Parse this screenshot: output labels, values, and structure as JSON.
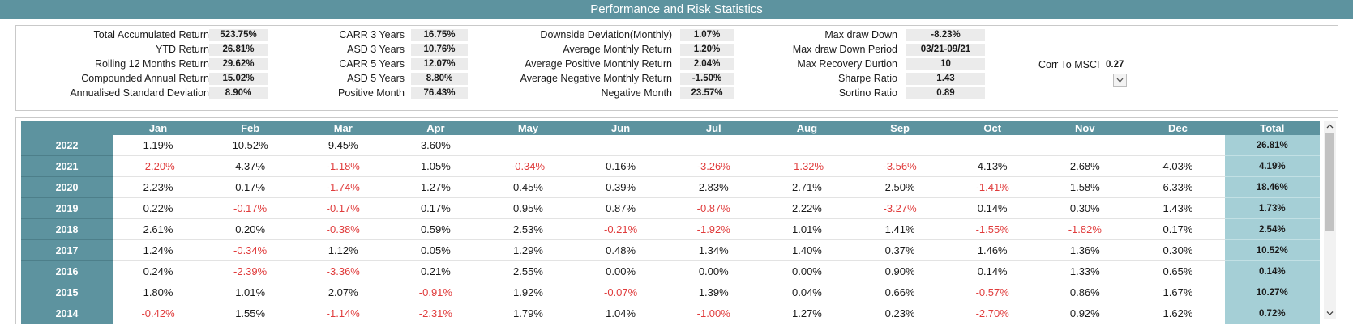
{
  "title": "Performance and Risk Statistics",
  "stats": {
    "col1": [
      {
        "label": "Total Accumulated Return",
        "value": "523.75%"
      },
      {
        "label": "YTD Return",
        "value": "26.81%"
      },
      {
        "label": "Rolling 12 Months Return",
        "value": "29.62%"
      },
      {
        "label": "Compounded Annual Return",
        "value": "15.02%"
      },
      {
        "label": "Annualised Standard Deviation",
        "value": "8.90%"
      }
    ],
    "col2": [
      {
        "label": "CARR 3 Years",
        "value": "16.75%"
      },
      {
        "label": "ASD 3 Years",
        "value": "10.76%"
      },
      {
        "label": "CARR 5 Years",
        "value": "12.07%"
      },
      {
        "label": "ASD 5 Years",
        "value": "8.80%"
      },
      {
        "label": "Positive Month",
        "value": "76.43%"
      }
    ],
    "col3": [
      {
        "label": "Downside Deviation(Monthly)",
        "value": "1.07%"
      },
      {
        "label": "Average Monthly Return",
        "value": "1.20%"
      },
      {
        "label": "Average Positive Monthly Return",
        "value": "2.04%"
      },
      {
        "label": "Average Negative Monthly Return",
        "value": "-1.50%"
      },
      {
        "label": "Negative Month",
        "value": "23.57%"
      }
    ],
    "col4": [
      {
        "label": "Max draw Down",
        "value": "-8.23%"
      },
      {
        "label": "Max draw Down Period",
        "value": "03/21-09/21"
      },
      {
        "label": "Max Recovery Durtion",
        "value": "10"
      },
      {
        "label": "Sharpe Ratio",
        "value": "1.43"
      },
      {
        "label": "Sortino Ratio",
        "value": "0.89"
      }
    ],
    "corr": {
      "label": "Corr To MSCI",
      "value": "0.27"
    }
  },
  "table": {
    "headers": [
      "",
      "Jan",
      "Feb",
      "Mar",
      "Apr",
      "May",
      "Jun",
      "Jul",
      "Aug",
      "Sep",
      "Oct",
      "Nov",
      "Dec",
      "Total"
    ],
    "rows": [
      {
        "year": "2022",
        "cells": [
          "1.19%",
          "10.52%",
          "9.45%",
          "3.60%",
          "",
          "",
          "",
          "",
          "",
          "",
          "",
          ""
        ],
        "total": "26.81%"
      },
      {
        "year": "2021",
        "cells": [
          "-2.20%",
          "4.37%",
          "-1.18%",
          "1.05%",
          "-0.34%",
          "0.16%",
          "-3.26%",
          "-1.32%",
          "-3.56%",
          "4.13%",
          "2.68%",
          "4.03%"
        ],
        "total": "4.19%"
      },
      {
        "year": "2020",
        "cells": [
          "2.23%",
          "0.17%",
          "-1.74%",
          "1.27%",
          "0.45%",
          "0.39%",
          "2.83%",
          "2.71%",
          "2.50%",
          "-1.41%",
          "1.58%",
          "6.33%"
        ],
        "total": "18.46%"
      },
      {
        "year": "2019",
        "cells": [
          "0.22%",
          "-0.17%",
          "-0.17%",
          "0.17%",
          "0.95%",
          "0.87%",
          "-0.87%",
          "2.22%",
          "-3.27%",
          "0.14%",
          "0.30%",
          "1.43%"
        ],
        "total": "1.73%"
      },
      {
        "year": "2018",
        "cells": [
          "2.61%",
          "0.20%",
          "-0.38%",
          "0.59%",
          "2.53%",
          "-0.21%",
          "-1.92%",
          "1.01%",
          "1.41%",
          "-1.55%",
          "-1.82%",
          "0.17%"
        ],
        "total": "2.54%"
      },
      {
        "year": "2017",
        "cells": [
          "1.24%",
          "-0.34%",
          "1.12%",
          "0.05%",
          "1.29%",
          "0.48%",
          "1.34%",
          "1.40%",
          "0.37%",
          "1.46%",
          "1.36%",
          "0.30%"
        ],
        "total": "10.52%"
      },
      {
        "year": "2016",
        "cells": [
          "0.24%",
          "-2.39%",
          "-3.36%",
          "0.21%",
          "2.55%",
          "0.00%",
          "0.00%",
          "0.00%",
          "0.90%",
          "0.14%",
          "1.33%",
          "0.65%"
        ],
        "total": "0.14%"
      },
      {
        "year": "2015",
        "cells": [
          "1.80%",
          "1.01%",
          "2.07%",
          "-0.91%",
          "1.92%",
          "-0.07%",
          "1.39%",
          "0.04%",
          "0.66%",
          "-0.57%",
          "0.86%",
          "1.67%"
        ],
        "total": "10.27%"
      },
      {
        "year": "2014",
        "cells": [
          "-0.42%",
          "1.55%",
          "-1.14%",
          "-2.31%",
          "1.79%",
          "1.04%",
          "-1.00%",
          "1.27%",
          "0.23%",
          "-2.70%",
          "0.92%",
          "1.62%"
        ],
        "total": "0.72%"
      }
    ]
  },
  "icons": {
    "dropdown": "chevron-down-icon",
    "scroll_up": "scroll-up-arrow-icon",
    "scroll_down": "scroll-down-arrow-icon"
  },
  "colors": {
    "header": "#5d939f",
    "total": "#a5cfd6",
    "negative": "#e03c3c"
  }
}
